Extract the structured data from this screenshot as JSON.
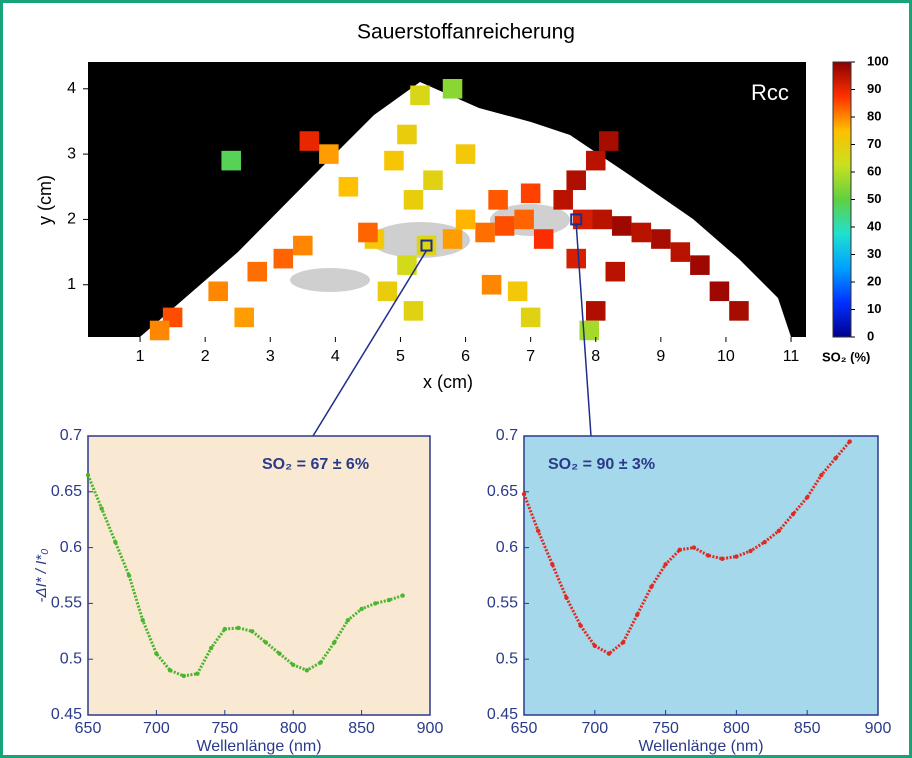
{
  "chart_data": [
    {
      "type": "heatmap",
      "title": "Sauerstoffanreicherung",
      "label": "Rcc",
      "xlabel": "x (cm)",
      "ylabel": "y (cm)",
      "xlim": [
        0.2,
        11.23
      ],
      "ylim": [
        0.2,
        4.41
      ],
      "xticks": [
        1,
        2,
        3,
        4,
        5,
        6,
        7,
        8,
        9,
        10,
        11
      ],
      "yticks": [
        1,
        2,
        3,
        4
      ],
      "cells": {
        "x": [
          7.5,
          7.8,
          8.1,
          8.4,
          8.7,
          9.0,
          9.3,
          9.6,
          7.7,
          8.0,
          8.2,
          9.9,
          10.2,
          8.3,
          8.0,
          7.7,
          6.3,
          6.6,
          6.9,
          7.2,
          5.8,
          6.0,
          6.5,
          7.0,
          5.4,
          5.1,
          5.2,
          4.8,
          4.6,
          5.2,
          5.5,
          4.9,
          5.1,
          5.3,
          4.2,
          3.9,
          6.0,
          6.8,
          7.0,
          7.9,
          3.2,
          3.5,
          2.8,
          2.2,
          2.6,
          1.5,
          1.3,
          3.6,
          2.4,
          5.8,
          4.5,
          6.4
        ],
        "y": [
          2.3,
          2.0,
          2.0,
          1.9,
          1.8,
          1.7,
          1.5,
          1.3,
          2.6,
          2.9,
          3.2,
          0.9,
          0.6,
          1.2,
          0.6,
          1.4,
          1.8,
          1.9,
          2.0,
          1.7,
          1.7,
          2.0,
          2.3,
          2.4,
          1.6,
          1.3,
          0.6,
          0.9,
          1.7,
          2.3,
          2.6,
          2.9,
          3.3,
          3.9,
          2.5,
          3.0,
          3.0,
          0.9,
          0.5,
          0.3,
          1.4,
          1.6,
          1.2,
          0.9,
          0.5,
          0.5,
          0.3,
          3.2,
          2.9,
          4.0,
          1.8,
          1.0
        ],
        "values": [
          95,
          92,
          95,
          98,
          95,
          97,
          95,
          98,
          96,
          95,
          97,
          98,
          97,
          95,
          96,
          92,
          82,
          85,
          83,
          88,
          78,
          76,
          84,
          86,
          67,
          65,
          68,
          70,
          72,
          70,
          68,
          73,
          70,
          66,
          75,
          78,
          72,
          72,
          68,
          58,
          83,
          80,
          82,
          80,
          78,
          85,
          80,
          90,
          48,
          55,
          83,
          80
        ]
      },
      "markers": {
        "x": [
          5.4,
          7.7
        ],
        "y": [
          1.6,
          2.0
        ]
      },
      "colorbar": {
        "label": "SO₂ (%)",
        "lim": [
          0,
          100
        ],
        "ticks": [
          0,
          10,
          20,
          30,
          40,
          50,
          60,
          70,
          80,
          90,
          100
        ],
        "colormap": [
          "#00008f",
          "#0030ff",
          "#00a0ff",
          "#20e0d0",
          "#60d040",
          "#c8e020",
          "#ffc000",
          "#ff3000",
          "#8b0000"
        ]
      }
    },
    {
      "type": "scatter",
      "annotation": "SO₂ = 67 ± 6%",
      "xlabel": "Wellenlänge (nm)",
      "ylabel": "-ΔI* / I*₀",
      "background": "#f9e8d2",
      "color": "#4ab52e",
      "xlim": [
        650,
        900
      ],
      "ylim": [
        0.45,
        0.7
      ],
      "xticks": [
        650,
        700,
        750,
        800,
        850,
        900
      ],
      "yticks": [
        0.45,
        0.5,
        0.55,
        0.6,
        0.65,
        0.7
      ],
      "x": [
        650,
        660,
        670,
        680,
        690,
        700,
        710,
        720,
        730,
        740,
        750,
        760,
        770,
        780,
        790,
        800,
        810,
        820,
        830,
        840,
        850,
        860,
        870,
        880
      ],
      "values": [
        0.665,
        0.635,
        0.605,
        0.575,
        0.535,
        0.505,
        0.49,
        0.485,
        0.487,
        0.51,
        0.527,
        0.528,
        0.525,
        0.515,
        0.505,
        0.495,
        0.49,
        0.497,
        0.515,
        0.535,
        0.545,
        0.55,
        0.553,
        0.557
      ]
    },
    {
      "type": "scatter",
      "annotation": "SO₂ = 90 ± 3%",
      "xlabel": "Wellenlänge (nm)",
      "background": "#a5d8ea",
      "color": "#e02a20",
      "xlim": [
        650,
        900
      ],
      "ylim": [
        0.45,
        0.7
      ],
      "xticks": [
        650,
        700,
        750,
        800,
        850,
        900
      ],
      "yticks": [
        0.45,
        0.5,
        0.55,
        0.6,
        0.65,
        0.7
      ],
      "x": [
        650,
        660,
        670,
        680,
        690,
        700,
        710,
        720,
        730,
        740,
        750,
        760,
        770,
        780,
        790,
        800,
        810,
        820,
        830,
        840,
        850,
        860,
        870,
        880
      ],
      "values": [
        0.648,
        0.615,
        0.585,
        0.555,
        0.53,
        0.512,
        0.505,
        0.515,
        0.54,
        0.565,
        0.585,
        0.598,
        0.6,
        0.593,
        0.59,
        0.592,
        0.597,
        0.605,
        0.615,
        0.63,
        0.645,
        0.665,
        0.68,
        0.695
      ]
    }
  ]
}
